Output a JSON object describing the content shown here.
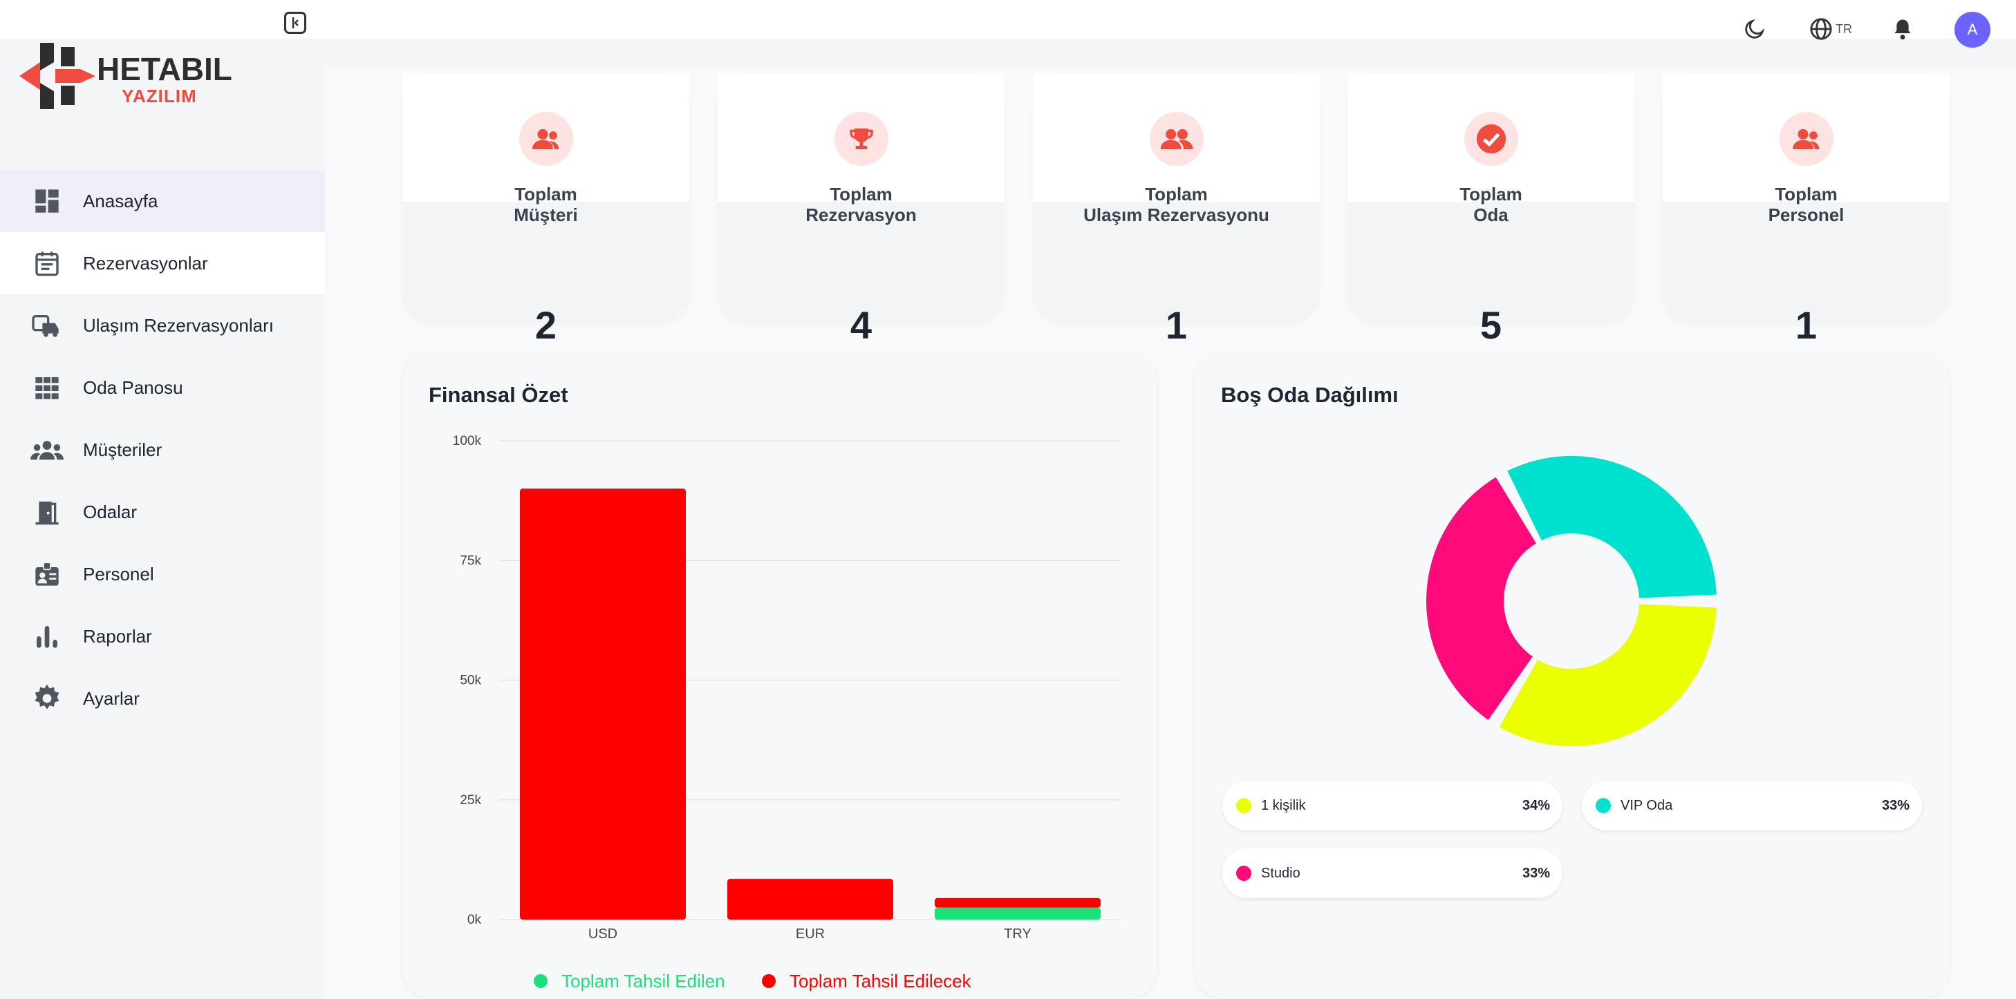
{
  "header": {
    "language": "TR",
    "avatar_initial": "A"
  },
  "logo": {
    "brand": "HETABIL",
    "sub": "YAZILIM"
  },
  "sidebar": {
    "items": [
      {
        "label": "Anasayfa",
        "icon": "dashboard-icon"
      },
      {
        "label": "Rezervasyonlar",
        "icon": "calendar-icon"
      },
      {
        "label": "Ulaşım Rezervasyonları",
        "icon": "car-icon"
      },
      {
        "label": "Oda Panosu",
        "icon": "grid-icon"
      },
      {
        "label": "Müşteriler",
        "icon": "people-icon"
      },
      {
        "label": "Odalar",
        "icon": "door-icon"
      },
      {
        "label": "Personel",
        "icon": "badge-icon"
      },
      {
        "label": "Raporlar",
        "icon": "bar-chart-icon"
      },
      {
        "label": "Ayarlar",
        "icon": "gear-icon"
      }
    ]
  },
  "stats": [
    {
      "line1": "Toplam",
      "line2": "Müşteri",
      "value": "2",
      "icon": "people-icon"
    },
    {
      "line1": "Toplam",
      "line2": "Rezervasyon",
      "value": "4",
      "icon": "trophy-icon"
    },
    {
      "line1": "Toplam",
      "line2": "Ulaşım Rezervasyonu",
      "value": "1",
      "icon": "people-icon"
    },
    {
      "line1": "Toplam",
      "line2": "Oda",
      "value": "5",
      "icon": "check-circle-icon"
    },
    {
      "line1": "Toplam",
      "line2": "Personel",
      "value": "1",
      "icon": "people-icon"
    }
  ],
  "finance": {
    "title": "Finansal Özet"
  },
  "empty_rooms": {
    "title": "Boş Oda Dağılımı",
    "legend": [
      {
        "name": "1 kişilik",
        "pct": "34%",
        "color": "#eaff00"
      },
      {
        "name": "VIP Oda",
        "pct": "33%",
        "color": "#00e0cf"
      },
      {
        "name": "Studio",
        "pct": "33%",
        "color": "#ff0a7a"
      }
    ]
  },
  "colors": {
    "accent": "#ef4b3f",
    "collected": "#1ee07a",
    "to_collect": "#ff0000"
  },
  "chart_data": [
    {
      "type": "bar",
      "categories": [
        "USD",
        "EUR",
        "TRY"
      ],
      "series": [
        {
          "name": "Toplam Tahsil Edilen",
          "values": [
            0,
            0,
            2500
          ],
          "color": "#1ee07a"
        },
        {
          "name": "Toplam Tahsil Edilecek",
          "values": [
            90000,
            8500,
            2000
          ],
          "color": "#ff0000"
        }
      ],
      "stacked": true,
      "ylim": [
        0,
        100000
      ],
      "yticks": [
        "0k",
        "25k",
        "50k",
        "75k",
        "100k"
      ],
      "ytick_values": [
        0,
        25000,
        50000,
        75000,
        100000
      ],
      "legend": "bottom",
      "grid": true
    },
    {
      "type": "pie",
      "donut": true,
      "labels": [
        "1 kişilik",
        "Studio",
        "VIP Oda"
      ],
      "values": [
        34,
        33,
        33
      ],
      "colors": [
        "#eaff00",
        "#ff0a7a",
        "#00e0cf"
      ]
    }
  ]
}
